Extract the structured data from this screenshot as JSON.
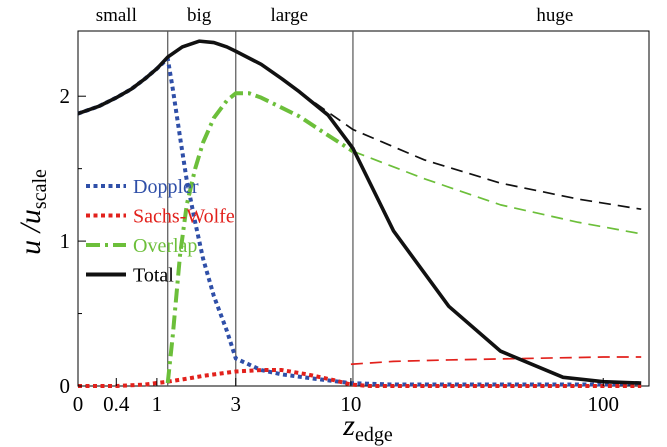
{
  "chart_data": {
    "type": "line",
    "xlabel": {
      "main": "z",
      "sub": "edge"
    },
    "ylabel": {
      "main": "u /u",
      "sub": "scale"
    },
    "x_scale": "log(1+z)",
    "xlim": [
      0,
      150
    ],
    "ylim": [
      0,
      2.45
    ],
    "x_ticks": [
      {
        "value": 0,
        "label": "0"
      },
      {
        "value": 0.4,
        "label": "0.4"
      },
      {
        "value": 1,
        "label": "1"
      },
      {
        "value": 3,
        "label": "3"
      },
      {
        "value": 10,
        "label": "10"
      },
      {
        "value": 100,
        "label": "100"
      }
    ],
    "y_ticks": [
      {
        "value": 0,
        "label": "0"
      },
      {
        "value": 1,
        "label": "1"
      },
      {
        "value": 2,
        "label": "2"
      }
    ],
    "region_boundaries": [
      1.2,
      3,
      10.2
    ],
    "regions": [
      {
        "label": "small",
        "at": 0.4
      },
      {
        "label": "big",
        "at": 1.9
      },
      {
        "label": "large",
        "at": 5.4
      },
      {
        "label": "huge",
        "at": 65
      }
    ],
    "legend": {
      "placement": "left-middle"
    },
    "series": [
      {
        "name": "Doppler",
        "color": "#2f4fa8",
        "style": "dotted",
        "legend": true,
        "points": [
          [
            0,
            1.88
          ],
          [
            0.2,
            1.93
          ],
          [
            0.4,
            1.99
          ],
          [
            0.6,
            2.05
          ],
          [
            0.8,
            2.12
          ],
          [
            1.0,
            2.19
          ],
          [
            1.2,
            2.26
          ],
          [
            1.3,
            2.05
          ],
          [
            1.45,
            1.72
          ],
          [
            1.6,
            1.42
          ],
          [
            1.8,
            1.13
          ],
          [
            2.0,
            0.88
          ],
          [
            2.3,
            0.62
          ],
          [
            2.7,
            0.38
          ],
          [
            3.0,
            0.19
          ],
          [
            4,
            0.11
          ],
          [
            5,
            0.08
          ],
          [
            7,
            0.05
          ],
          [
            10,
            0.02
          ],
          [
            15,
            0.01
          ],
          [
            30,
            0.01
          ],
          [
            60,
            0.01
          ],
          [
            100,
            0.01
          ],
          [
            140,
            0.02
          ]
        ]
      },
      {
        "name": "Sachs-Wolfe",
        "color": "#e2211c",
        "style": "dotted",
        "legend": true,
        "points": [
          [
            0,
            0
          ],
          [
            0.4,
            0.0
          ],
          [
            0.8,
            0.01
          ],
          [
            1.2,
            0.03
          ],
          [
            1.6,
            0.05
          ],
          [
            2.0,
            0.07
          ],
          [
            3.0,
            0.1
          ],
          [
            4.0,
            0.11
          ],
          [
            5.0,
            0.11
          ],
          [
            6.5,
            0.08
          ],
          [
            8.5,
            0.04
          ],
          [
            10,
            0.01
          ],
          [
            12,
            0.0
          ],
          [
            30,
            0.0
          ],
          [
            140,
            0.0
          ]
        ]
      },
      {
        "name": "Sachs-Wolfe continuation",
        "color": "#e2211c",
        "style": "dashed",
        "legend": false,
        "points": [
          [
            10,
            0.15
          ],
          [
            15,
            0.17
          ],
          [
            25,
            0.18
          ],
          [
            50,
            0.19
          ],
          [
            100,
            0.2
          ],
          [
            140,
            0.2
          ]
        ]
      },
      {
        "name": "Overlap",
        "color": "#6cbf3a",
        "style": "dash-dot",
        "legend": true,
        "points": [
          [
            1.2,
            0.02
          ],
          [
            1.3,
            0.35
          ],
          [
            1.45,
            0.9
          ],
          [
            1.6,
            1.25
          ],
          [
            1.8,
            1.5
          ],
          [
            2.0,
            1.68
          ],
          [
            2.3,
            1.85
          ],
          [
            2.7,
            1.97
          ],
          [
            3.0,
            2.02
          ],
          [
            3.5,
            2.02
          ],
          [
            4.0,
            1.99
          ],
          [
            5.0,
            1.92
          ],
          [
            6.0,
            1.86
          ],
          [
            8.0,
            1.73
          ],
          [
            10.2,
            1.62
          ]
        ]
      },
      {
        "name": "Overlap continuation",
        "color": "#6cbf3a",
        "style": "dashed",
        "legend": false,
        "points": [
          [
            10.2,
            1.62
          ],
          [
            20,
            1.43
          ],
          [
            40,
            1.25
          ],
          [
            80,
            1.13
          ],
          [
            140,
            1.05
          ]
        ]
      },
      {
        "name": "Total",
        "color": "#111111",
        "style": "solid",
        "legend": true,
        "points": [
          [
            0,
            1.88
          ],
          [
            0.2,
            1.93
          ],
          [
            0.4,
            1.99
          ],
          [
            0.6,
            2.05
          ],
          [
            0.8,
            2.12
          ],
          [
            1.0,
            2.19
          ],
          [
            1.2,
            2.27
          ],
          [
            1.5,
            2.34
          ],
          [
            1.9,
            2.38
          ],
          [
            2.3,
            2.37
          ],
          [
            2.7,
            2.34
          ],
          [
            3.0,
            2.31
          ],
          [
            4.0,
            2.22
          ],
          [
            5.0,
            2.12
          ],
          [
            6.0,
            2.03
          ],
          [
            8.0,
            1.87
          ],
          [
            10.2,
            1.64
          ],
          [
            15,
            1.07
          ],
          [
            25,
            0.55
          ],
          [
            40,
            0.24
          ],
          [
            70,
            0.06
          ],
          [
            100,
            0.03
          ],
          [
            140,
            0.02
          ]
        ]
      },
      {
        "name": "Total continuation",
        "color": "#111111",
        "style": "dashed",
        "legend": false,
        "points": [
          [
            6.0,
            2.03
          ],
          [
            8.0,
            1.89
          ],
          [
            10.2,
            1.77
          ],
          [
            20,
            1.56
          ],
          [
            40,
            1.4
          ],
          [
            80,
            1.29
          ],
          [
            140,
            1.22
          ]
        ]
      }
    ]
  }
}
